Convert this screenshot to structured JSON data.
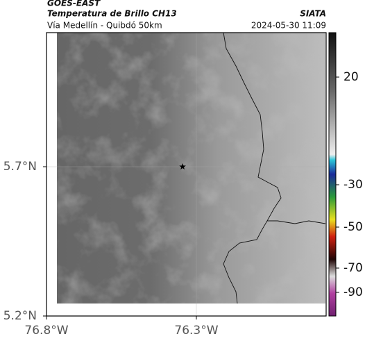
{
  "header": {
    "source": "GOES-EAST",
    "title": "Temperatura de Brillo CH13",
    "org": "SIATA",
    "subtitle": "Vía Medellín - Quibdó 50km",
    "datetime": "2024-05-30 11:09"
  },
  "map": {
    "xlim": [
      -76.8,
      -75.867
    ],
    "ylim": [
      5.2,
      6.149
    ],
    "xticks": [
      {
        "value": -76.8,
        "label": "76.8°W"
      },
      {
        "value": -76.3,
        "label": "76.3°W"
      }
    ],
    "yticks": [
      {
        "value": 5.7,
        "label": "5.7°N"
      },
      {
        "value": 5.2,
        "label": "5.2°N"
      }
    ],
    "grid": true,
    "marker": {
      "lon": -76.346,
      "lat": 5.7
    }
  },
  "colorbar": {
    "ticks": [
      20,
      -30,
      -50,
      -70,
      -90
    ]
  }
}
